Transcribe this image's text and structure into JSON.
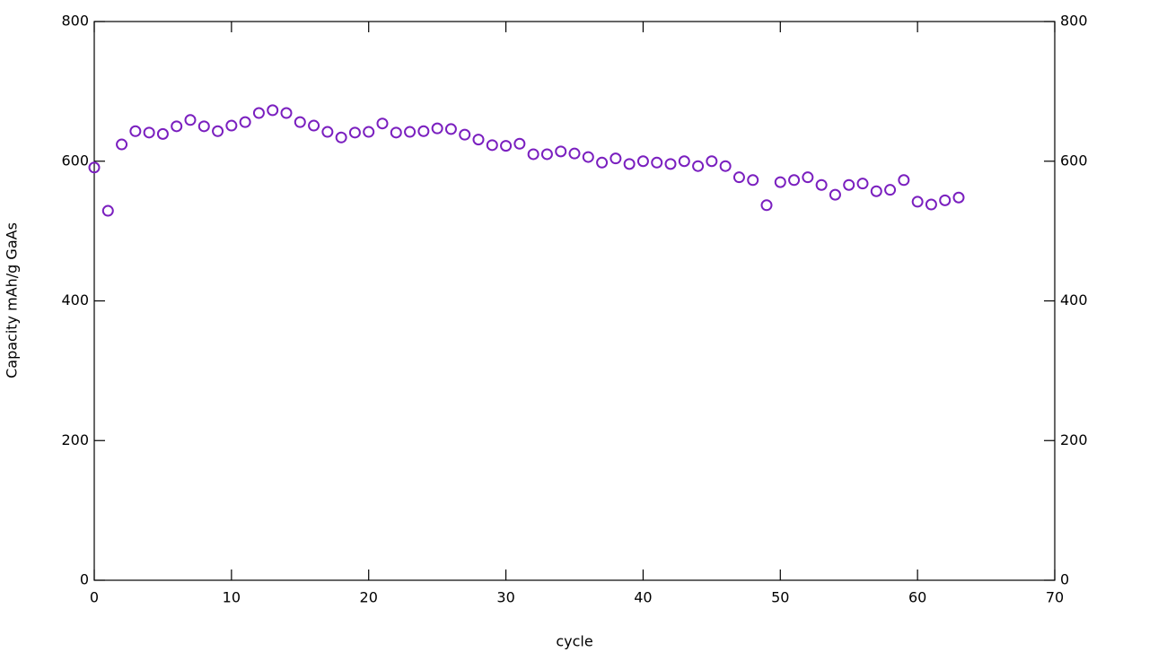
{
  "chart_data": {
    "type": "scatter",
    "xlabel": "cycle",
    "ylabel": "Capacity mAh/g GaAs",
    "x": [
      0,
      1,
      2,
      3,
      4,
      5,
      6,
      7,
      8,
      9,
      10,
      11,
      12,
      13,
      14,
      15,
      16,
      17,
      18,
      19,
      20,
      21,
      22,
      23,
      24,
      25,
      26,
      27,
      28,
      29,
      30,
      31,
      32,
      33,
      34,
      35,
      36,
      37,
      38,
      39,
      40,
      41,
      42,
      43,
      44,
      45,
      46,
      47,
      48,
      49,
      50,
      51,
      52,
      53,
      54,
      55,
      56,
      57,
      58,
      59,
      60,
      61,
      62,
      63
    ],
    "values": [
      591,
      529,
      624,
      643,
      641,
      639,
      650,
      659,
      650,
      643,
      651,
      656,
      669,
      673,
      669,
      656,
      651,
      642,
      634,
      641,
      642,
      654,
      641,
      642,
      643,
      647,
      646,
      638,
      631,
      623,
      622,
      625,
      610,
      610,
      614,
      611,
      606,
      598,
      604,
      596,
      600,
      598,
      596,
      600,
      593,
      600,
      593,
      577,
      573,
      537,
      570,
      573,
      577,
      566,
      552,
      566,
      568,
      557,
      559,
      573,
      542,
      538,
      544,
      548
    ],
    "color": "#7a1fbf",
    "xlim": [
      0,
      70
    ],
    "xticks": [
      0,
      10,
      20,
      30,
      40,
      50,
      60,
      70
    ],
    "ylim": [
      0,
      800
    ],
    "yticks": [
      0,
      200,
      400,
      600,
      800
    ]
  }
}
